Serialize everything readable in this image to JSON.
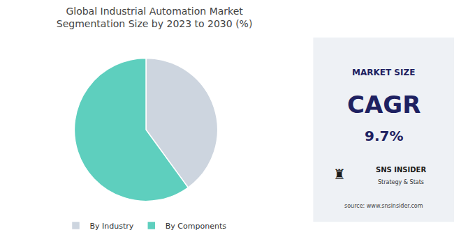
{
  "chart_data": {
    "type": "pie",
    "title": "Global Industrial Automation Market\nSegmentation Size by 2023 to 2030 (%)",
    "categories": [
      "By Industry",
      "By Components"
    ],
    "values": [
      40,
      60
    ],
    "colors": [
      "#cdd5df",
      "#5ecfbe"
    ],
    "legend": "bottom",
    "annotations": [
      "MARKET SIZE",
      "CAGR",
      "9.7%",
      "♜",
      "SNS INSIDER",
      "Strategy & Stats",
      "source: www.snsinsider.com"
    ]
  }
}
